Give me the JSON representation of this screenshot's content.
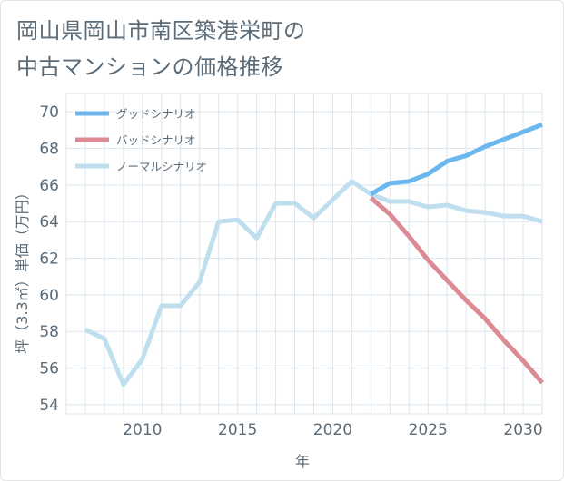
{
  "title": {
    "line1": "岡山県岡山市南区築港栄町の",
    "line2": "中古マンションの価格推移"
  },
  "colors": {
    "good": "#6cb8ee",
    "bad": "#dc8a93",
    "normal": "#bfdfee",
    "grid": "#dbe6ee",
    "axis": "#5b6b78"
  },
  "chart_data": {
    "type": "line",
    "xlabel": "年",
    "ylabel": "坪（3.3㎡）単価（万円）",
    "xlim": [
      2006,
      2031
    ],
    "ylim": [
      53.5,
      71
    ],
    "xticks": [
      2010,
      2015,
      2020,
      2025,
      2030
    ],
    "yticks": [
      54,
      56,
      58,
      60,
      62,
      64,
      66,
      68,
      70
    ],
    "legend_position": "top-left",
    "grid": true,
    "series": [
      {
        "name": "グッドシナリオ",
        "color_key": "good",
        "x": [
          2022,
          2023,
          2024,
          2025,
          2026,
          2027,
          2028,
          2029,
          2030,
          2031
        ],
        "y": [
          65.5,
          66.1,
          66.2,
          66.6,
          67.3,
          67.6,
          68.1,
          68.5,
          68.9,
          69.3
        ]
      },
      {
        "name": "バッドシナリオ",
        "color_key": "bad",
        "x": [
          2022,
          2023,
          2024,
          2025,
          2026,
          2027,
          2028,
          2029,
          2030,
          2031
        ],
        "y": [
          65.3,
          64.4,
          63.2,
          61.9,
          60.8,
          59.7,
          58.7,
          57.5,
          56.4,
          55.2
        ]
      },
      {
        "name": "ノーマルシナリオ",
        "color_key": "normal",
        "x": [
          2007,
          2008,
          2009,
          2010,
          2011,
          2012,
          2013,
          2014,
          2015,
          2016,
          2017,
          2018,
          2019,
          2020,
          2021,
          2022,
          2023,
          2024,
          2025,
          2026,
          2027,
          2028,
          2029,
          2030,
          2031
        ],
        "y": [
          58.1,
          57.6,
          55.1,
          56.5,
          59.4,
          59.4,
          60.7,
          64.0,
          64.1,
          63.1,
          65.0,
          65.0,
          64.2,
          65.2,
          66.2,
          65.5,
          65.1,
          65.1,
          64.8,
          64.9,
          64.6,
          64.5,
          64.3,
          64.3,
          64.0
        ]
      }
    ]
  }
}
